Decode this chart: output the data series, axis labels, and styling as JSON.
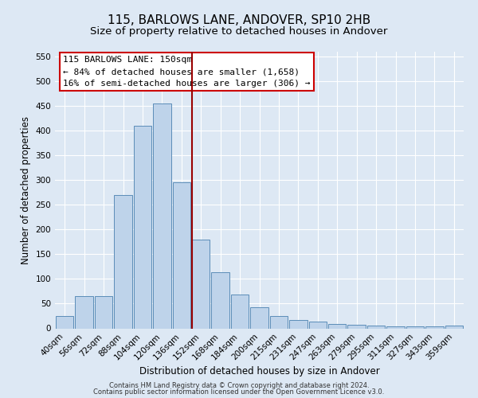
{
  "title": "115, BARLOWS LANE, ANDOVER, SP10 2HB",
  "subtitle": "Size of property relative to detached houses in Andover",
  "xlabel": "Distribution of detached houses by size in Andover",
  "ylabel": "Number of detached properties",
  "categories": [
    "40sqm",
    "56sqm",
    "72sqm",
    "88sqm",
    "104sqm",
    "120sqm",
    "136sqm",
    "152sqm",
    "168sqm",
    "184sqm",
    "200sqm",
    "215sqm",
    "231sqm",
    "247sqm",
    "263sqm",
    "279sqm",
    "295sqm",
    "311sqm",
    "327sqm",
    "343sqm",
    "359sqm"
  ],
  "values": [
    25,
    65,
    65,
    270,
    410,
    455,
    295,
    180,
    113,
    68,
    43,
    25,
    17,
    14,
    9,
    7,
    5,
    4,
    4,
    4,
    5
  ],
  "bar_color": "#bed3ea",
  "bar_edge_color": "#5b8db8",
  "marker_bar_index": 7,
  "marker_color": "#990000",
  "annotation_line1": "115 BARLOWS LANE: 150sqm",
  "annotation_line2": "← 84% of detached houses are smaller (1,658)",
  "annotation_line3": "16% of semi-detached houses are larger (306) →",
  "annotation_box_color": "#ffffff",
  "annotation_box_edge": "#cc0000",
  "background_color": "#dde8f4",
  "grid_color": "#ffffff",
  "ylim": [
    0,
    560
  ],
  "yticks": [
    0,
    50,
    100,
    150,
    200,
    250,
    300,
    350,
    400,
    450,
    500,
    550
  ],
  "footer_line1": "Contains HM Land Registry data © Crown copyright and database right 2024.",
  "footer_line2": "Contains public sector information licensed under the Open Government Licence v3.0.",
  "title_fontsize": 11,
  "subtitle_fontsize": 9.5,
  "xlabel_fontsize": 8.5,
  "ylabel_fontsize": 8.5,
  "tick_fontsize": 7.5,
  "annotation_fontsize": 8,
  "footer_fontsize": 6
}
